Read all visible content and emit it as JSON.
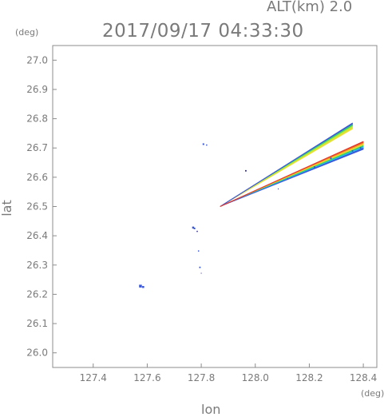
{
  "header": {
    "alt_label": "ALT(km) 2.0",
    "timestamp": "2017/09/17 04:33:30"
  },
  "chart_data": {
    "type": "scatter",
    "title": "2017/09/17 04:33:30",
    "subtitle": "ALT(km) 2.0",
    "xlabel": "lon",
    "ylabel": "lat",
    "x_unit": "(deg)",
    "y_unit": "(deg)",
    "xlim": [
      127.25,
      128.45
    ],
    "ylim": [
      25.95,
      27.05
    ],
    "x_ticks": [
      "127.4",
      "127.6",
      "127.8",
      "128.0",
      "128.2",
      "128.4"
    ],
    "y_ticks": [
      "26.0",
      "26.1",
      "26.2",
      "26.3",
      "26.4",
      "26.5",
      "26.6",
      "26.7",
      "26.8",
      "26.9",
      "27.0"
    ],
    "grid": false,
    "colors": {
      "axis": "#8c8c8c",
      "blue": "#3a57d8",
      "cyan": "#28b8f0",
      "green": "#36d26a",
      "yellowgreen": "#b8e63a",
      "yellow": "#e8e030",
      "orange": "#f09a2a",
      "red": "#e43a2a",
      "navy": "#2a2a9a"
    },
    "wedges": [
      {
        "name": "upper-beam",
        "apex": [
          127.87,
          26.5
        ],
        "edge_outer": [
          128.36,
          26.785
        ],
        "edge_inner": [
          128.36,
          26.765
        ],
        "colors": [
          "blue",
          "green",
          "yellowgreen",
          "yellow"
        ]
      },
      {
        "name": "lower-beam",
        "apex": [
          127.87,
          26.5
        ],
        "edge_outer": [
          128.4,
          26.722
        ],
        "edge_inner": [
          128.4,
          26.695
        ],
        "colors": [
          "red",
          "orange",
          "yellow",
          "green",
          "cyan",
          "blue"
        ]
      }
    ],
    "points": [
      {
        "x": 127.575,
        "y": 26.228,
        "c": "blue",
        "s": 3.5
      },
      {
        "x": 127.585,
        "y": 26.225,
        "c": "blue",
        "s": 2.5
      },
      {
        "x": 127.77,
        "y": 26.428,
        "c": "blue",
        "s": 2.5
      },
      {
        "x": 127.775,
        "y": 26.425,
        "c": "blue",
        "s": 2
      },
      {
        "x": 127.785,
        "y": 26.415,
        "c": "navy",
        "s": 1.5
      },
      {
        "x": 127.79,
        "y": 26.348,
        "c": "blue",
        "s": 1.5
      },
      {
        "x": 127.795,
        "y": 26.292,
        "c": "blue",
        "s": 1.8
      },
      {
        "x": 127.8,
        "y": 26.272,
        "c": "navy",
        "s": 1
      },
      {
        "x": 127.808,
        "y": 26.713,
        "c": "blue",
        "s": 2
      },
      {
        "x": 127.82,
        "y": 26.71,
        "c": "blue",
        "s": 1.5
      },
      {
        "x": 127.965,
        "y": 26.622,
        "c": "navy",
        "s": 1.8
      },
      {
        "x": 128.085,
        "y": 26.56,
        "c": "navy",
        "s": 1
      },
      {
        "x": 128.12,
        "y": 26.595,
        "c": "blue",
        "s": 1.5
      },
      {
        "x": 128.22,
        "y": 26.635,
        "c": "blue",
        "s": 2
      },
      {
        "x": 128.28,
        "y": 26.665,
        "c": "blue",
        "s": 2
      },
      {
        "x": 128.36,
        "y": 26.69,
        "c": "blue",
        "s": 2
      },
      {
        "x": 128.39,
        "y": 26.7,
        "c": "blue",
        "s": 2
      }
    ]
  }
}
